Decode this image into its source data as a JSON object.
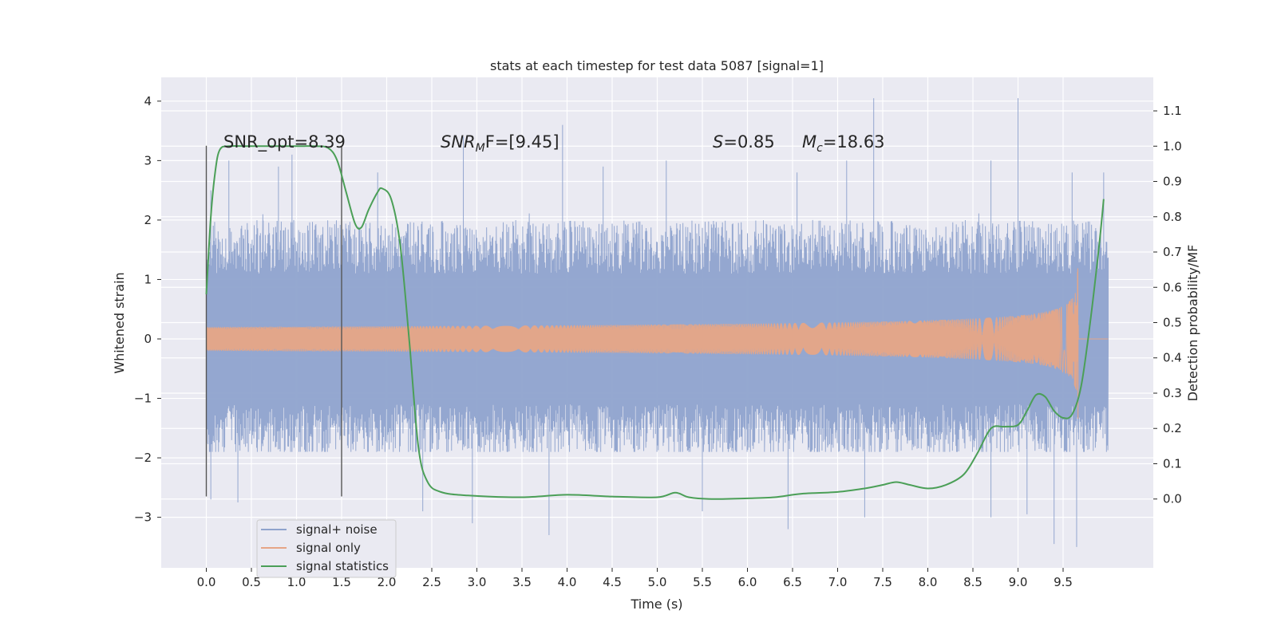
{
  "chart_data": {
    "type": "line",
    "title": "stats at each timestep for test data 5087 [signal=1]",
    "xlabel": "Time (s)",
    "ylabel_left": "Whitened strain",
    "ylabel_right": "Detection probability/MF",
    "xlim": [
      -0.5,
      10.5
    ],
    "ylim_left": [
      -3.85,
      4.4
    ],
    "ylim_right": [
      -0.195,
      1.195
    ],
    "x_ticks": [
      "0.0",
      "0.5",
      "1.0",
      "1.5",
      "2.0",
      "2.5",
      "3.0",
      "3.5",
      "4.0",
      "4.5",
      "5.0",
      "5.5",
      "6.0",
      "6.5",
      "7.0",
      "7.5",
      "8.0",
      "8.5",
      "9.0",
      "9.5"
    ],
    "y_left_ticks": [
      "4",
      "3",
      "2",
      "1",
      "0",
      "−1",
      "−2",
      "−3"
    ],
    "y_right_ticks": [
      "1.1",
      "1.0",
      "0.9",
      "0.8",
      "0.7",
      "0.6",
      "0.5",
      "0.4",
      "0.3",
      "0.2",
      "0.1",
      "0.0"
    ],
    "grid": true,
    "legend_position": "lower-left",
    "annotations": {
      "snr_opt": "SNR_opt=8.39",
      "snr_mf_main": "SNR",
      "snr_mf_sub": "M",
      "snr_mf_rest": "F=[9.45]",
      "s_main": "S",
      "s_rest": "=0.85",
      "mc_main": "M",
      "mc_sub": "c",
      "mc_rest": "=18.63"
    },
    "vertical_markers": [
      {
        "x": 0.0,
        "y_range": [
          -2.65,
          3.25
        ]
      },
      {
        "x": 1.5,
        "y_range": [
          -2.65,
          3.25
        ]
      }
    ],
    "series": [
      {
        "name": "signal+ noise",
        "color": "#8fa3cd",
        "axis": "left",
        "x_range": [
          0.0,
          10.0
        ],
        "envelope_typical": [
          -1.9,
          2.2
        ],
        "peaks": [
          {
            "x": 0.05,
            "y": 2.5
          },
          {
            "x": 0.25,
            "y": 3.0
          },
          {
            "x": 0.8,
            "y": 2.9
          },
          {
            "x": 0.95,
            "y": 3.1
          },
          {
            "x": 1.5,
            "y": 2.9
          },
          {
            "x": 1.9,
            "y": 2.8
          },
          {
            "x": 2.85,
            "y": 3.4
          },
          {
            "x": 3.95,
            "y": 3.6
          },
          {
            "x": 4.4,
            "y": 2.9
          },
          {
            "x": 5.1,
            "y": 3.0
          },
          {
            "x": 6.55,
            "y": 2.8
          },
          {
            "x": 7.1,
            "y": 3.0
          },
          {
            "x": 7.4,
            "y": 4.05
          },
          {
            "x": 8.7,
            "y": 3.0
          },
          {
            "x": 9.0,
            "y": 4.05
          },
          {
            "x": 9.6,
            "y": 2.8
          },
          {
            "x": 9.95,
            "y": 2.8
          }
        ],
        "troughs": [
          {
            "x": 0.05,
            "y": -2.7
          },
          {
            "x": 0.35,
            "y": -2.75
          },
          {
            "x": 2.4,
            "y": -2.9
          },
          {
            "x": 2.95,
            "y": -3.1
          },
          {
            "x": 3.8,
            "y": -3.3
          },
          {
            "x": 5.5,
            "y": -2.9
          },
          {
            "x": 6.45,
            "y": -3.2
          },
          {
            "x": 7.3,
            "y": -3.0
          },
          {
            "x": 8.7,
            "y": -3.0
          },
          {
            "x": 9.1,
            "y": -2.95
          },
          {
            "x": 9.4,
            "y": -3.45
          },
          {
            "x": 9.65,
            "y": -3.5
          }
        ]
      },
      {
        "name": "signal only",
        "color": "#e6a586",
        "axis": "left",
        "x_range": [
          0.0,
          10.0
        ],
        "merger_time": 9.67,
        "peak_amplitude": 1.45
      },
      {
        "name": "signal statistics",
        "color": "#4b9f57",
        "axis": "right",
        "points": [
          [
            0.0,
            0.58
          ],
          [
            0.05,
            0.8
          ],
          [
            0.1,
            0.93
          ],
          [
            0.15,
            0.99
          ],
          [
            0.25,
            1.0
          ],
          [
            0.5,
            1.0
          ],
          [
            1.0,
            1.0
          ],
          [
            1.2,
            1.0
          ],
          [
            1.35,
            0.995
          ],
          [
            1.45,
            0.96
          ],
          [
            1.55,
            0.87
          ],
          [
            1.65,
            0.78
          ],
          [
            1.72,
            0.77
          ],
          [
            1.8,
            0.82
          ],
          [
            1.9,
            0.87
          ],
          [
            1.95,
            0.88
          ],
          [
            2.05,
            0.85
          ],
          [
            2.15,
            0.72
          ],
          [
            2.25,
            0.45
          ],
          [
            2.35,
            0.15
          ],
          [
            2.45,
            0.05
          ],
          [
            2.6,
            0.02
          ],
          [
            2.9,
            0.01
          ],
          [
            3.5,
            0.005
          ],
          [
            4.0,
            0.012
          ],
          [
            4.5,
            0.007
          ],
          [
            5.0,
            0.005
          ],
          [
            5.2,
            0.018
          ],
          [
            5.35,
            0.005
          ],
          [
            5.6,
            0.0
          ],
          [
            6.0,
            0.002
          ],
          [
            6.3,
            0.005
          ],
          [
            6.6,
            0.015
          ],
          [
            7.0,
            0.02
          ],
          [
            7.3,
            0.03
          ],
          [
            7.5,
            0.04
          ],
          [
            7.65,
            0.048
          ],
          [
            7.8,
            0.04
          ],
          [
            8.0,
            0.03
          ],
          [
            8.2,
            0.04
          ],
          [
            8.4,
            0.07
          ],
          [
            8.55,
            0.13
          ],
          [
            8.7,
            0.2
          ],
          [
            8.85,
            0.205
          ],
          [
            9.0,
            0.21
          ],
          [
            9.1,
            0.25
          ],
          [
            9.2,
            0.295
          ],
          [
            9.3,
            0.29
          ],
          [
            9.4,
            0.25
          ],
          [
            9.5,
            0.23
          ],
          [
            9.6,
            0.24
          ],
          [
            9.7,
            0.32
          ],
          [
            9.8,
            0.5
          ],
          [
            9.9,
            0.72
          ],
          [
            9.95,
            0.85
          ]
        ]
      }
    ]
  }
}
